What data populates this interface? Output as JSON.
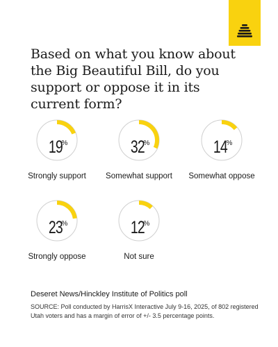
{
  "brand": {
    "logo_icon": "beehive-icon",
    "color": "#f9d20f"
  },
  "question": "Based on what you know about the Big Beautiful Bill, do you support or oppose it in its current form?",
  "chart_data": {
    "type": "pie",
    "categories": [
      "Strongly support",
      "Somewhat support",
      "Somewhat oppose",
      "Strongly oppose",
      "Not sure"
    ],
    "values": [
      19,
      32,
      14,
      23,
      12
    ],
    "unit": "%",
    "accent_color": "#f9d20f",
    "track_color": "#cfcfcf"
  },
  "stats": [
    {
      "value": "19",
      "symbol": "%",
      "label": "Strongly support"
    },
    {
      "value": "32",
      "symbol": "%",
      "label": "Somewhat support"
    },
    {
      "value": "14",
      "symbol": "%",
      "label": "Somewhat oppose"
    },
    {
      "value": "23",
      "symbol": "%",
      "label": "Strongly oppose"
    },
    {
      "value": "12",
      "symbol": "%",
      "label": "Not sure"
    }
  ],
  "source": {
    "title": "Deseret News/Hinckley Institute of Politics poll",
    "note": "SOURCE: Poll conducted by HarrisX Interactive July 9-16, 2025, of 802 registered Utah voters and has a margin of error of +/- 3.5 percentage points."
  }
}
